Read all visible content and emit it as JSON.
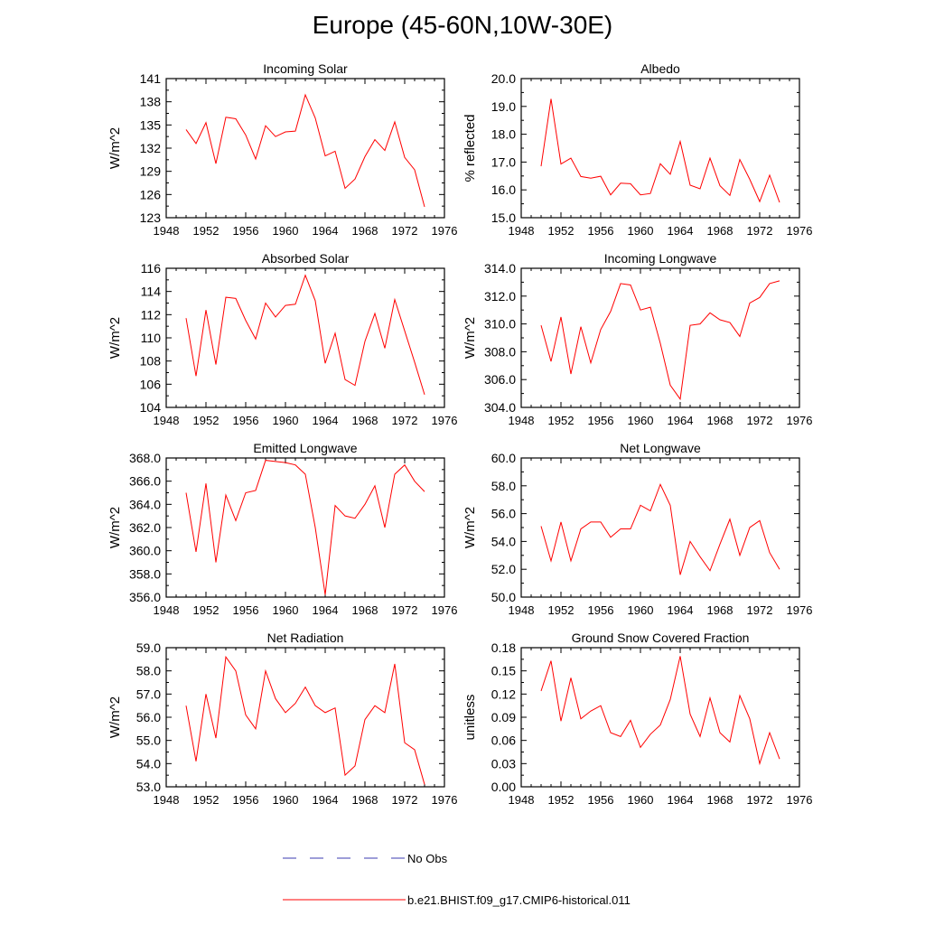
{
  "page": {
    "title": "Europe (45-60N,10W-30E)"
  },
  "legend": {
    "placement": "bottom-center",
    "entries": [
      {
        "label": "No Obs",
        "color": "#3b3bb0",
        "style": "dashed"
      },
      {
        "label": "b.e21.BHIST.f09_g17.CMIP6-historical.011",
        "color": "#ff0000",
        "style": "solid"
      }
    ]
  },
  "colors": {
    "series": "#ff0000",
    "axis": "#000000"
  },
  "chart_data": [
    {
      "type": "line",
      "title": "Incoming Solar",
      "ylabel": "W/m^2",
      "xlim": [
        1948,
        1976
      ],
      "xticks": [
        "1948",
        "1952",
        "1956",
        "1960",
        "1964",
        "1968",
        "1972",
        "1976"
      ],
      "ylim": [
        123,
        141
      ],
      "yticks": [
        "123",
        "126",
        "129",
        "132",
        "135",
        "138",
        "141"
      ],
      "x": [
        1950,
        1951,
        1952,
        1953,
        1954,
        1955,
        1956,
        1957,
        1958,
        1959,
        1960,
        1961,
        1962,
        1963,
        1964,
        1965,
        1966,
        1967,
        1968,
        1969,
        1970,
        1971,
        1972,
        1973,
        1974
      ],
      "series": [
        {
          "name": "b.e21.BHIST.f09_g17.CMIP6-historical.011",
          "values": [
            134.4,
            132.6,
            135.3,
            130.0,
            136.0,
            135.8,
            133.7,
            130.6,
            134.9,
            133.5,
            134.1,
            134.2,
            138.9,
            135.9,
            131.0,
            131.6,
            126.8,
            128.0,
            130.9,
            133.1,
            131.7,
            135.4,
            130.8,
            129.2,
            124.4
          ]
        }
      ]
    },
    {
      "type": "line",
      "title": "Albedo",
      "ylabel": "% reflected",
      "xlim": [
        1948,
        1976
      ],
      "xticks": [
        "1948",
        "1952",
        "1956",
        "1960",
        "1964",
        "1968",
        "1972",
        "1976"
      ],
      "ylim": [
        15.0,
        20.0
      ],
      "yticks": [
        "15.0",
        "16.0",
        "17.0",
        "18.0",
        "19.0",
        "20.0"
      ],
      "x": [
        1950,
        1951,
        1952,
        1953,
        1954,
        1955,
        1956,
        1957,
        1958,
        1959,
        1960,
        1961,
        1962,
        1963,
        1964,
        1965,
        1966,
        1967,
        1968,
        1969,
        1970,
        1971,
        1972,
        1973,
        1974
      ],
      "series": [
        {
          "name": "b.e21.BHIST.f09_g17.CMIP6-historical.011",
          "values": [
            16.85,
            19.27,
            16.93,
            17.14,
            16.48,
            16.42,
            16.49,
            15.82,
            16.24,
            16.22,
            15.82,
            15.87,
            16.94,
            16.56,
            17.74,
            16.17,
            16.04,
            17.14,
            16.15,
            15.8,
            17.09,
            16.38,
            15.58,
            16.53,
            15.55
          ]
        }
      ]
    },
    {
      "type": "line",
      "title": "Absorbed Solar",
      "ylabel": "W/m^2",
      "xlim": [
        1948,
        1976
      ],
      "xticks": [
        "1948",
        "1952",
        "1956",
        "1960",
        "1964",
        "1968",
        "1972",
        "1976"
      ],
      "ylim": [
        104,
        116
      ],
      "yticks": [
        "104",
        "106",
        "108",
        "110",
        "112",
        "114",
        "116"
      ],
      "x": [
        1950,
        1951,
        1952,
        1953,
        1954,
        1955,
        1956,
        1957,
        1958,
        1959,
        1960,
        1961,
        1962,
        1963,
        1964,
        1965,
        1966,
        1967,
        1968,
        1969,
        1970,
        1971,
        1972,
        1973,
        1974
      ],
      "series": [
        {
          "name": "b.e21.BHIST.f09_g17.CMIP6-historical.011",
          "values": [
            111.7,
            106.7,
            112.4,
            107.7,
            113.5,
            113.4,
            111.5,
            109.9,
            113.0,
            111.8,
            112.8,
            112.9,
            115.4,
            113.2,
            107.8,
            110.4,
            106.4,
            105.9,
            109.7,
            112.1,
            109.1,
            113.3,
            110.6,
            107.9,
            105.1
          ]
        }
      ]
    },
    {
      "type": "line",
      "title": "Incoming Longwave",
      "ylabel": "W/m^2",
      "xlim": [
        1948,
        1976
      ],
      "xticks": [
        "1948",
        "1952",
        "1956",
        "1960",
        "1964",
        "1968",
        "1972",
        "1976"
      ],
      "ylim": [
        304.0,
        314.0
      ],
      "yticks": [
        "304.0",
        "306.0",
        "308.0",
        "310.0",
        "312.0",
        "314.0"
      ],
      "x": [
        1950,
        1951,
        1952,
        1953,
        1954,
        1955,
        1956,
        1957,
        1958,
        1959,
        1960,
        1961,
        1962,
        1963,
        1964,
        1965,
        1966,
        1967,
        1968,
        1969,
        1970,
        1971,
        1972,
        1973,
        1974
      ],
      "series": [
        {
          "name": "b.e21.BHIST.f09_g17.CMIP6-historical.011",
          "values": [
            309.9,
            307.3,
            310.5,
            306.4,
            309.8,
            307.2,
            309.6,
            310.9,
            312.9,
            312.8,
            311.0,
            311.2,
            308.6,
            305.6,
            304.6,
            309.9,
            310.0,
            310.8,
            310.3,
            310.1,
            309.1,
            311.5,
            311.9,
            312.9,
            313.1
          ]
        }
      ]
    },
    {
      "type": "line",
      "title": "Emitted Longwave",
      "ylabel": "W/m^2",
      "xlim": [
        1948,
        1976
      ],
      "xticks": [
        "1948",
        "1952",
        "1956",
        "1960",
        "1964",
        "1968",
        "1972",
        "1976"
      ],
      "ylim": [
        356.0,
        368.0
      ],
      "yticks": [
        "356.0",
        "358.0",
        "360.0",
        "362.0",
        "364.0",
        "366.0",
        "368.0"
      ],
      "x": [
        1950,
        1951,
        1952,
        1953,
        1954,
        1955,
        1956,
        1957,
        1958,
        1959,
        1960,
        1961,
        1962,
        1963,
        1964,
        1965,
        1966,
        1967,
        1968,
        1969,
        1970,
        1971,
        1972,
        1973,
        1974
      ],
      "series": [
        {
          "name": "b.e21.BHIST.f09_g17.CMIP6-historical.011",
          "values": [
            365.0,
            359.9,
            365.8,
            359.0,
            364.8,
            362.6,
            365.0,
            365.2,
            367.8,
            367.7,
            367.6,
            367.4,
            366.6,
            362.0,
            356.2,
            363.9,
            363.0,
            362.8,
            364.0,
            365.6,
            362.0,
            366.6,
            367.4,
            366.0,
            365.1
          ]
        }
      ]
    },
    {
      "type": "line",
      "title": "Net Longwave",
      "ylabel": "W/m^2",
      "xlim": [
        1948,
        1976
      ],
      "xticks": [
        "1948",
        "1952",
        "1956",
        "1960",
        "1964",
        "1968",
        "1972",
        "1976"
      ],
      "ylim": [
        50.0,
        60.0
      ],
      "yticks": [
        "50.0",
        "52.0",
        "54.0",
        "56.0",
        "58.0",
        "60.0"
      ],
      "x": [
        1950,
        1951,
        1952,
        1953,
        1954,
        1955,
        1956,
        1957,
        1958,
        1959,
        1960,
        1961,
        1962,
        1963,
        1964,
        1965,
        1966,
        1967,
        1968,
        1969,
        1970,
        1971,
        1972,
        1973,
        1974
      ],
      "series": [
        {
          "name": "b.e21.BHIST.f09_g17.CMIP6-historical.011",
          "values": [
            55.1,
            52.6,
            55.4,
            52.6,
            54.9,
            55.4,
            55.4,
            54.3,
            54.9,
            54.9,
            56.6,
            56.2,
            58.1,
            56.6,
            51.6,
            54.0,
            52.9,
            51.9,
            53.8,
            55.6,
            53.0,
            55.0,
            55.5,
            53.2,
            52.0
          ]
        }
      ]
    },
    {
      "type": "line",
      "title": "Net Radiation",
      "ylabel": "W/m^2",
      "xlim": [
        1948,
        1976
      ],
      "xticks": [
        "1948",
        "1952",
        "1956",
        "1960",
        "1964",
        "1968",
        "1972",
        "1976"
      ],
      "ylim": [
        53.0,
        59.0
      ],
      "yticks": [
        "53.0",
        "54.0",
        "55.0",
        "56.0",
        "57.0",
        "58.0",
        "59.0"
      ],
      "x": [
        1950,
        1951,
        1952,
        1953,
        1954,
        1955,
        1956,
        1957,
        1958,
        1959,
        1960,
        1961,
        1962,
        1963,
        1964,
        1965,
        1966,
        1967,
        1968,
        1969,
        1970,
        1971,
        1972,
        1973,
        1974
      ],
      "series": [
        {
          "name": "b.e21.BHIST.f09_g17.CMIP6-historical.011",
          "values": [
            56.5,
            54.1,
            57.0,
            55.1,
            58.6,
            58.0,
            56.1,
            55.5,
            58.0,
            56.8,
            56.2,
            56.6,
            57.3,
            56.5,
            56.2,
            56.4,
            53.5,
            53.9,
            55.9,
            56.5,
            56.2,
            58.3,
            54.9,
            54.6,
            53.1
          ]
        }
      ]
    },
    {
      "type": "line",
      "title": "Ground Snow Covered Fraction",
      "ylabel": "unitless",
      "xlim": [
        1948,
        1976
      ],
      "xticks": [
        "1948",
        "1952",
        "1956",
        "1960",
        "1964",
        "1968",
        "1972",
        "1976"
      ],
      "ylim": [
        0.0,
        0.18
      ],
      "yticks": [
        "0.00",
        "0.03",
        "0.06",
        "0.09",
        "0.12",
        "0.15",
        "0.18"
      ],
      "x": [
        1950,
        1951,
        1952,
        1953,
        1954,
        1955,
        1956,
        1957,
        1958,
        1959,
        1960,
        1961,
        1962,
        1963,
        1964,
        1965,
        1966,
        1967,
        1968,
        1969,
        1970,
        1971,
        1972,
        1973,
        1974
      ],
      "series": [
        {
          "name": "b.e21.BHIST.f09_g17.CMIP6-historical.011",
          "values": [
            0.124,
            0.163,
            0.085,
            0.141,
            0.088,
            0.098,
            0.105,
            0.07,
            0.065,
            0.086,
            0.051,
            0.068,
            0.08,
            0.113,
            0.169,
            0.094,
            0.065,
            0.115,
            0.07,
            0.058,
            0.118,
            0.088,
            0.03,
            0.07,
            0.036
          ]
        }
      ]
    }
  ]
}
